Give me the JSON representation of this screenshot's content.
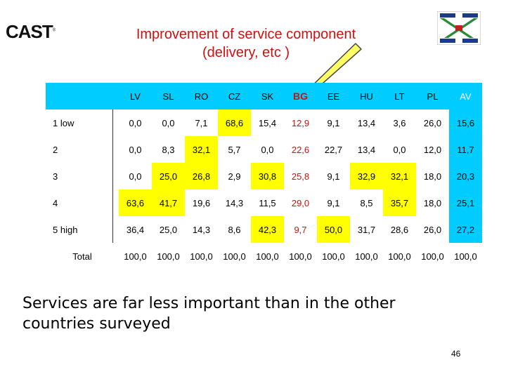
{
  "logo": "CAST",
  "title_lines": [
    "Improvement of service component",
    "(delivery, etc  )"
  ],
  "table": {
    "columns": [
      "LV",
      "SL",
      "RO",
      "CZ",
      "SK",
      "BG",
      "EE",
      "HU",
      "LT",
      "PL",
      "AV"
    ],
    "rows": [
      {
        "label": "1 low",
        "values": [
          "0,0",
          "0,0",
          "7,1",
          "68,6",
          "15,4",
          "12,9",
          "9,1",
          "13,4",
          "3,6",
          "26,0",
          "15,6"
        ]
      },
      {
        "label": "2",
        "values": [
          "0,0",
          "8,3",
          "32,1",
          "5,7",
          "0,0",
          "22,6",
          "22,7",
          "13,4",
          "0,0",
          "12,0",
          "11,7"
        ]
      },
      {
        "label": "3",
        "values": [
          "0,0",
          "25,0",
          "26,8",
          "2,9",
          "30,8",
          "25,8",
          "9,1",
          "32,9",
          "32,1",
          "18,0",
          "20,3"
        ]
      },
      {
        "label": "4",
        "values": [
          "63,6",
          "41,7",
          "19,6",
          "14,3",
          "11,5",
          "29,0",
          "9,1",
          "8,5",
          "35,7",
          "18,0",
          "25,1"
        ]
      },
      {
        "label": "5 high",
        "values": [
          "36,4",
          "25,0",
          "14,3",
          "8,6",
          "42,3",
          "9,7",
          "50,0",
          "31,7",
          "28,6",
          "26,0",
          "27,2"
        ]
      },
      {
        "label": "Total",
        "values": [
          "100,0",
          "100,0",
          "100,0",
          "100,0",
          "100,0",
          "100,0",
          "100,0",
          "100,0",
          "100,0",
          "100,0",
          "100,0"
        ]
      }
    ],
    "highlight_yellow": [
      [
        0,
        3
      ],
      [
        1,
        2
      ],
      [
        2,
        1
      ],
      [
        2,
        2
      ],
      [
        2,
        4
      ],
      [
        2,
        7
      ],
      [
        2,
        8
      ],
      [
        3,
        0
      ],
      [
        3,
        1
      ],
      [
        3,
        8
      ],
      [
        4,
        4
      ],
      [
        4,
        6
      ]
    ]
  },
  "note": "Services are far less important than in the other countries surveyed",
  "page_number": "46",
  "colors": {
    "title": "#d01010",
    "header": "#00ccff",
    "highlight": "#ffff00",
    "av_header": "#0000ff",
    "callout": "#ffff66"
  }
}
